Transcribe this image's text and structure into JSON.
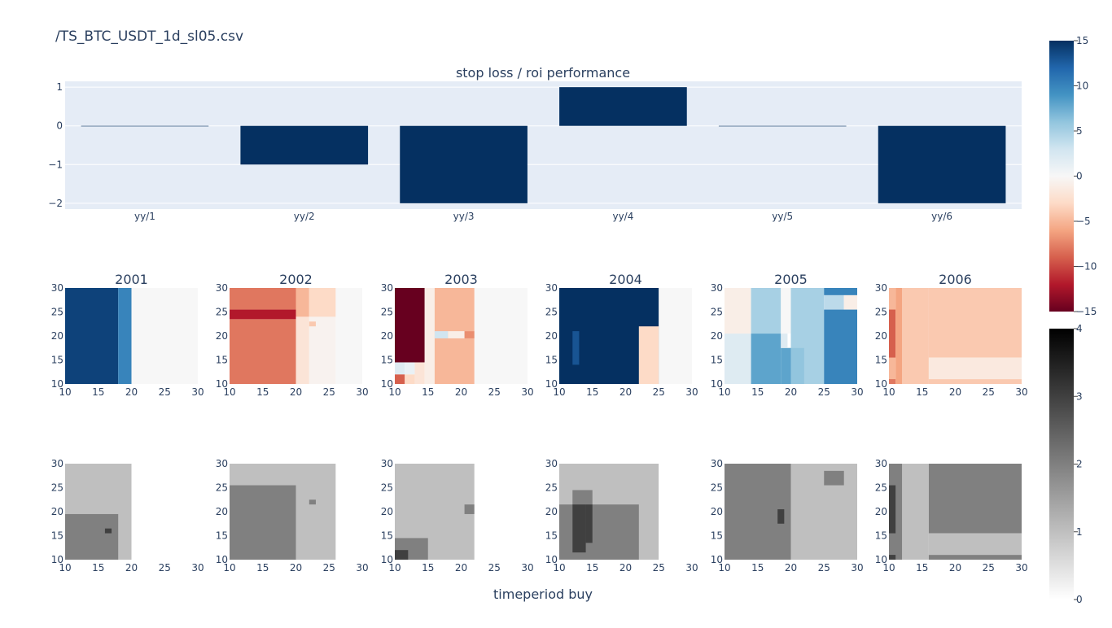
{
  "page": {
    "title": "/TS_BTC_USDT_1d_sl05.csv",
    "x_axis_title": "timeperiod buy"
  },
  "colors": {
    "plot_bg": "#e5ecf6",
    "grid": "#ffffff",
    "bar": "#053061",
    "text": "#2a3f5f",
    "rdbu": [
      "#67001f",
      "#b2182b",
      "#d6604d",
      "#f4a582",
      "#fddbc7",
      "#f7f7f7",
      "#d1e5f0",
      "#92c5de",
      "#4393c3",
      "#2166ac",
      "#053061"
    ],
    "gray": [
      "#ffffff",
      "#000000"
    ]
  },
  "chart_data": [
    {
      "type": "bar",
      "title": "stop loss / roi performance",
      "categories": [
        "yy/1",
        "yy/2",
        "yy/3",
        "yy/4",
        "yy/5",
        "yy/6"
      ],
      "values": [
        0,
        -1,
        -2,
        1,
        0,
        -2
      ],
      "ylim": [
        -2.15,
        1.15
      ],
      "yticks": [
        1,
        0,
        -1,
        -2
      ],
      "ytick_labels": [
        "1",
        "0",
        "−1",
        "−2"
      ],
      "grid": true
    },
    {
      "type": "heatmap",
      "colorscale": "RdBu",
      "zrange": [
        -15,
        15
      ],
      "colorbar_ticks": [
        15,
        10,
        5,
        0,
        -5,
        -10,
        -15
      ],
      "colorbar_tick_labels": [
        "15",
        "10",
        "5",
        "0",
        "−5",
        "−10",
        "−15"
      ],
      "axis_ticks": [
        10,
        15,
        20,
        25,
        30
      ],
      "axis_range": [
        10,
        30
      ],
      "panels": [
        {
          "title": "2001",
          "cells": [
            [
              10,
              18,
              10,
              30,
              14
            ],
            [
              18,
              20,
              10,
              30,
              10
            ],
            [
              20,
              30,
              10,
              30,
              0
            ]
          ]
        },
        {
          "title": "2002",
          "cells": [
            [
              10,
              20,
              10,
              23.5,
              -8
            ],
            [
              10,
              20,
              23.5,
              25.5,
              -12
            ],
            [
              10,
              20,
              25.5,
              30,
              -8
            ],
            [
              20,
              22,
              10,
              24,
              -2
            ],
            [
              20,
              22,
              24,
              30,
              -5
            ],
            [
              22,
              26,
              10,
              24,
              -0.5
            ],
            [
              22,
              26,
              24,
              30,
              -3
            ],
            [
              22,
              23,
              22,
              23,
              -4
            ],
            [
              26,
              30,
              10,
              30,
              0
            ]
          ]
        },
        {
          "title": "2003",
          "cells": [
            [
              10,
              11.5,
              10,
              12,
              -9
            ],
            [
              10,
              11.5,
              12,
              14.5,
              2
            ],
            [
              11.5,
              13,
              10,
              12,
              -3
            ],
            [
              11.5,
              13,
              12,
              14.5,
              1
            ],
            [
              13,
              14.5,
              10,
              14.5,
              -2
            ],
            [
              10,
              14.5,
              14.5,
              30,
              -15
            ],
            [
              14.5,
              16,
              10,
              30,
              -1
            ],
            [
              16,
              22,
              10,
              30,
              -5
            ],
            [
              18,
              22,
              19.5,
              21,
              -1
            ],
            [
              16,
              18,
              19.5,
              21,
              3
            ],
            [
              20.5,
              22,
              19.5,
              21,
              -7
            ],
            [
              22,
              30,
              10,
              30,
              0
            ]
          ]
        },
        {
          "title": "2004",
          "cells": [
            [
              10,
              25,
              10,
              30,
              15
            ],
            [
              12,
              13,
              14,
              21,
              13
            ],
            [
              22,
              25,
              10,
              22,
              -3
            ],
            [
              25,
              30,
              10,
              30,
              0
            ]
          ]
        },
        {
          "title": "2005",
          "cells": [
            [
              10,
              14,
              10,
              20.5,
              2
            ],
            [
              10,
              14,
              20.5,
              30,
              -1
            ],
            [
              14,
              18.5,
              10,
              20.5,
              8
            ],
            [
              14,
              18.5,
              20.5,
              30,
              5
            ],
            [
              18.5,
              20,
              10,
              17.5,
              8
            ],
            [
              18.5,
              19.5,
              17.5,
              20.5,
              2
            ],
            [
              18.5,
              20,
              20.5,
              30,
              0
            ],
            [
              20,
              25,
              10,
              30,
              5
            ],
            [
              20,
              22,
              10,
              17.5,
              6
            ],
            [
              25,
              30,
              10,
              25.5,
              10
            ],
            [
              25,
              28,
              25.5,
              28.5,
              4
            ],
            [
              28,
              30,
              25.5,
              28.5,
              -1
            ],
            [
              25,
              30,
              28.5,
              30,
              10
            ]
          ]
        },
        {
          "title": "2006",
          "cells": [
            [
              10,
              11,
              10,
              30,
              -5
            ],
            [
              10,
              11,
              15.5,
              25.5,
              -9
            ],
            [
              10,
              11,
              10,
              11,
              -8
            ],
            [
              11,
              12,
              10,
              30,
              -6
            ],
            [
              12,
              16,
              10,
              30,
              -4
            ],
            [
              16,
              30,
              15.5,
              30,
              -4
            ],
            [
              16,
              30,
              11,
              15.5,
              -1.5
            ],
            [
              16,
              30,
              10,
              11,
              -4
            ]
          ]
        }
      ]
    },
    {
      "type": "heatmap",
      "colorscale": "Greys",
      "zrange": [
        0,
        4
      ],
      "colorbar_ticks": [
        4,
        3,
        2,
        1,
        0
      ],
      "colorbar_tick_labels": [
        "4",
        "3",
        "2",
        "1",
        "0"
      ],
      "axis_ticks": [
        10,
        15,
        20,
        25,
        30
      ],
      "axis_range": [
        10,
        30
      ],
      "panels": [
        {
          "cells": [
            [
              10,
              20,
              10,
              30,
              1
            ],
            [
              10,
              18,
              10,
              19.5,
              2
            ],
            [
              16,
              17,
              15.5,
              16.5,
              3
            ],
            [
              20,
              30,
              10,
              30,
              0
            ]
          ]
        },
        {
          "cells": [
            [
              10,
              26,
              10,
              30,
              1
            ],
            [
              10,
              20,
              10,
              25.5,
              2
            ],
            [
              22,
              23,
              21.5,
              22.5,
              2
            ],
            [
              26,
              30,
              10,
              30,
              0
            ]
          ]
        },
        {
          "cells": [
            [
              10,
              22,
              10,
              30,
              1
            ],
            [
              10,
              15,
              10,
              14.5,
              2
            ],
            [
              10,
              12,
              10,
              12,
              3
            ],
            [
              20.5,
              22,
              19.5,
              21.5,
              2
            ],
            [
              22,
              30,
              10,
              30,
              0
            ]
          ]
        },
        {
          "cells": [
            [
              10,
              25,
              10,
              30,
              1
            ],
            [
              10,
              22,
              10,
              21.5,
              2
            ],
            [
              12,
              15,
              21.5,
              24.5,
              2
            ],
            [
              12,
              14,
              11.5,
              21.5,
              3
            ],
            [
              14,
              15,
              13.5,
              21.5,
              3
            ],
            [
              25,
              30,
              10,
              30,
              0
            ]
          ]
        },
        {
          "cells": [
            [
              10,
              20,
              10,
              30,
              2
            ],
            [
              20,
              30,
              10,
              30,
              1
            ],
            [
              18,
              19,
              17.5,
              20.5,
              3
            ],
            [
              19,
              20,
              10,
              17.5,
              2
            ],
            [
              25,
              28,
              25.5,
              28.5,
              2
            ]
          ]
        },
        {
          "cells": [
            [
              10,
              12,
              10,
              30,
              2
            ],
            [
              10,
              11,
              15.5,
              25.5,
              3
            ],
            [
              10,
              11,
              10,
              11,
              3
            ],
            [
              12,
              16,
              10,
              30,
              1
            ],
            [
              16,
              30,
              15.5,
              30,
              2
            ],
            [
              16,
              30,
              11,
              15.5,
              1
            ],
            [
              16,
              30,
              10,
              11,
              2
            ]
          ]
        }
      ]
    }
  ]
}
